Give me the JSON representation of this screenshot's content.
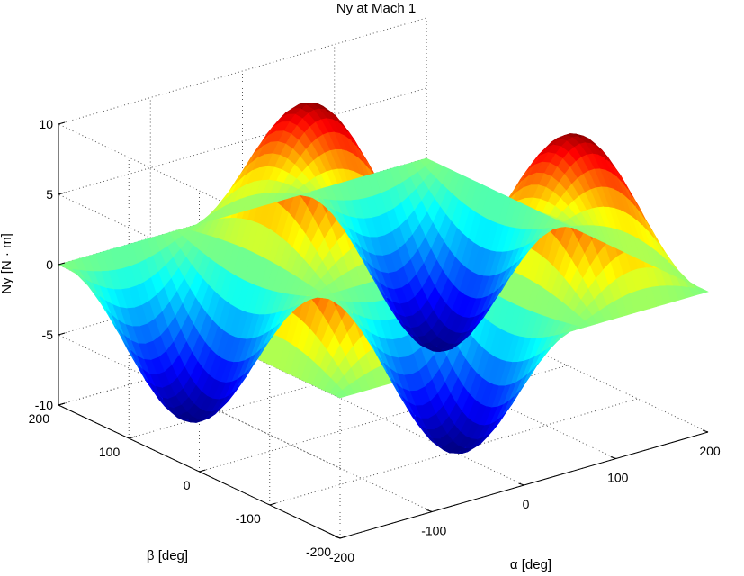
{
  "chart_data": {
    "type": "surface",
    "title": "Ny at Mach 1",
    "zlabel": "Ny [N · m]",
    "alpha_label": "α [deg]",
    "beta_label": "β [deg]",
    "alpha_range": [
      -200,
      200
    ],
    "beta_range": [
      -200,
      200
    ],
    "z_range": [
      -10,
      10
    ],
    "z_ticks": [
      "10",
      "5",
      "0",
      "-5",
      "-10"
    ],
    "alpha_ticks": [
      "-200",
      "-100",
      "0",
      "100",
      "200"
    ],
    "beta_ticks": [
      "200",
      "100",
      "0",
      "-100",
      "-200"
    ],
    "peak_amplitude": 10,
    "periods_alpha": 3,
    "periods_beta": 2,
    "colormap": "jet",
    "grid": true
  }
}
